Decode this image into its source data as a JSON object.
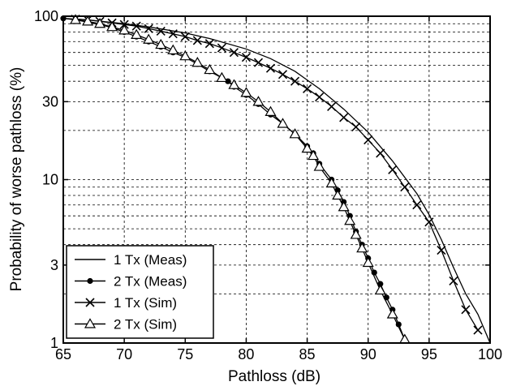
{
  "chart_data": {
    "type": "line",
    "xlabel": "Pathloss (dB)",
    "ylabel": "Probability of worse pathloss (%)",
    "xlim": [
      65,
      100
    ],
    "ylim": [
      1,
      100
    ],
    "yscale": "log",
    "x_ticks": [
      65,
      70,
      75,
      80,
      85,
      90,
      95,
      100
    ],
    "y_ticks": [
      1,
      3,
      10,
      30,
      100
    ],
    "grid": true,
    "grid_style": "dashed",
    "legend_position": "bottom-left",
    "series": [
      {
        "name": "1 Tx (Meas)",
        "marker": "none",
        "x": [
          65,
          67,
          70,
          72,
          75,
          77,
          80,
          82,
          84,
          86,
          88,
          90,
          92,
          94,
          95,
          96,
          97,
          98,
          99,
          100
        ],
        "y": [
          97,
          95,
          90,
          86,
          79,
          73,
          63,
          55,
          46,
          36,
          27,
          19.5,
          13,
          8.2,
          6.1,
          4.3,
          2.9,
          2.0,
          1.5,
          1.0
        ]
      },
      {
        "name": "2 Tx (Meas)",
        "marker": "dot",
        "x": [
          65,
          66,
          67,
          68,
          69,
          70,
          71,
          72,
          73,
          74,
          75,
          76,
          77,
          78,
          78.5,
          79,
          80,
          81,
          82,
          83,
          84,
          85,
          85.5,
          86,
          87,
          87.5,
          88,
          88.5,
          89,
          89.5,
          90,
          90.5,
          91,
          91.5,
          92,
          92.5,
          93
        ],
        "y": [
          97,
          95,
          92,
          89,
          85,
          80,
          75,
          70,
          65,
          60,
          56,
          51,
          46,
          42,
          40,
          37,
          33,
          29,
          25,
          22,
          19,
          16,
          14.5,
          12.5,
          10,
          8.6,
          7.3,
          6.0,
          4.8,
          4.0,
          3.3,
          2.7,
          2.3,
          1.9,
          1.6,
          1.3,
          1.05
        ]
      },
      {
        "name": "1 Tx (Sim)",
        "marker": "x",
        "x": [
          66,
          67,
          68,
          69,
          70,
          71,
          72,
          73,
          74,
          75,
          76,
          77,
          78,
          79,
          80,
          81,
          82,
          83,
          84,
          85,
          86,
          87,
          88,
          89,
          90,
          91,
          92,
          93,
          94,
          95,
          96,
          97,
          98,
          99
        ],
        "y": [
          96,
          95,
          93,
          91,
          89,
          87,
          84,
          81,
          78,
          75,
          71,
          68,
          64,
          60,
          56,
          52,
          48,
          44,
          40,
          36,
          32,
          28,
          24,
          21,
          17.5,
          14.5,
          11.5,
          9,
          7,
          5.5,
          3.7,
          2.4,
          1.6,
          1.2
        ]
      },
      {
        "name": "2 Tx (Sim)",
        "marker": "triangle",
        "x": [
          66,
          67,
          68,
          69,
          70,
          71,
          72,
          73,
          74,
          75,
          76,
          77,
          78,
          79,
          80,
          81,
          82,
          83,
          84,
          85,
          85.5,
          86,
          87,
          87.5,
          88,
          88.5,
          89,
          89.5,
          90,
          91,
          92,
          93
        ],
        "y": [
          95,
          93,
          90,
          86,
          82,
          77,
          72,
          67,
          62,
          57,
          52,
          47,
          42,
          38,
          34,
          30,
          26,
          22,
          19,
          15.5,
          14,
          12,
          9.5,
          8,
          6.8,
          5.6,
          4.6,
          3.8,
          3.1,
          2.1,
          1.5,
          1.05
        ]
      }
    ]
  }
}
